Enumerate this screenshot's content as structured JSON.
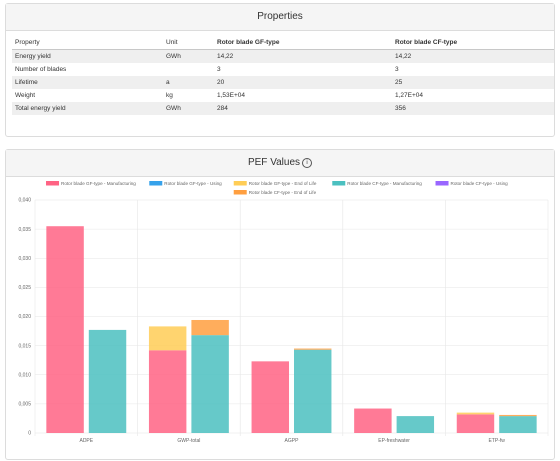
{
  "properties": {
    "title": "Properties",
    "columns": [
      "Property",
      "Unit",
      "Rotor blade GF-type",
      "Rotor blade CF-type"
    ],
    "rows": [
      [
        "Energy yield",
        "GWh",
        "14,22",
        "14,22"
      ],
      [
        "Number of blades",
        "",
        "3",
        "3"
      ],
      [
        "Lifetime",
        "a",
        "20",
        "25"
      ],
      [
        "Weight",
        "kg",
        "1,53E+04",
        "1,27E+04"
      ],
      [
        "Total energy yield",
        "GWh",
        "284",
        "356"
      ]
    ]
  },
  "pef": {
    "title": "PEF Values",
    "info_icon": "info-icon"
  },
  "chart_data": {
    "type": "bar",
    "stacked": true,
    "categories": [
      "ADPE",
      "GWP-total",
      "AGPP",
      "EP-freshwater",
      "ETP-fw"
    ],
    "ylim": [
      0,
      0.04
    ],
    "yticks": [
      "0",
      "0,005",
      "0,010",
      "0,015",
      "0,020",
      "0,025",
      "0,030",
      "0,035",
      "0,040"
    ],
    "grid": true,
    "legend_position": "top",
    "series": [
      {
        "name": "Rotor blade GF-type - Manufacturing",
        "stack": "GF",
        "color": "#ff6384",
        "values": [
          0.0355,
          0.0142,
          0.0123,
          0.0042,
          0.0032
        ]
      },
      {
        "name": "Rotor blade GF-type - Using",
        "stack": "GF",
        "color": "#36a2eb",
        "values": [
          0,
          0,
          0,
          0,
          0
        ]
      },
      {
        "name": "Rotor blade GF-type - End of Life",
        "stack": "GF",
        "color": "#ffcd56",
        "values": [
          0,
          0.0041,
          0,
          0,
          0.0003
        ]
      },
      {
        "name": "Rotor blade CF-type - Manufacturing",
        "stack": "CF",
        "color": "#4bc0c0",
        "values": [
          0.0177,
          0.0168,
          0.0143,
          0.0029,
          0.0029
        ]
      },
      {
        "name": "Rotor blade CF-type - Using",
        "stack": "CF",
        "color": "#9966ff",
        "values": [
          0,
          0,
          0,
          0,
          0
        ]
      },
      {
        "name": "Rotor blade CF-type - End of Life",
        "stack": "CF",
        "color": "#ff9f40",
        "values": [
          0,
          0.0026,
          0.0002,
          0,
          0.0002
        ]
      }
    ]
  }
}
